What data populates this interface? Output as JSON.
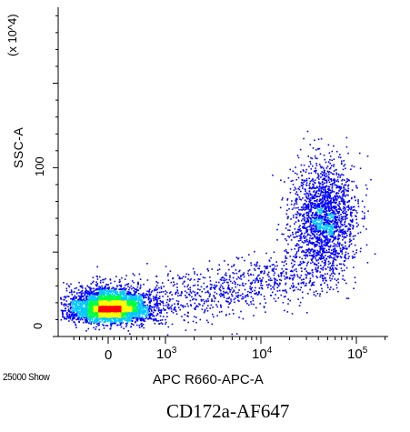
{
  "caption": "CD172a-AF647",
  "chart_data": {
    "type": "scatter",
    "title": "",
    "xlabel": "APC R660-APC-A",
    "ylabel": "SSC-A",
    "y_scale_note": "(x 10^4)",
    "events_note": "25000 Show",
    "x_scale": "biexponential",
    "x_ticks": [
      {
        "value": 0,
        "label": "0"
      },
      {
        "value": 1000,
        "label": "10^3"
      },
      {
        "value": 10000,
        "label": "10^4"
      },
      {
        "value": 100000,
        "label": "10^5"
      }
    ],
    "y_ticks": [
      {
        "value": 0,
        "label": "0"
      },
      {
        "value": 100,
        "label": "100"
      }
    ],
    "ylim": [
      0,
      195
    ],
    "grid": false,
    "colormap": "density (blue-cyan-green-yellow-red)",
    "populations": [
      {
        "name": "",
        "x_center": 0,
        "y_center": 13,
        "share": 0.55
      },
      {
        "name": "",
        "x_center": 45000,
        "y_center": 70,
        "share": 0.3
      },
      {
        "name": "",
        "x_center": 3000,
        "y_center": 22,
        "share": 0.15
      }
    ]
  },
  "colors": {
    "low": "#0000ff",
    "mid": "#00c8ff",
    "high_mid": "#00ff40",
    "high": "#ffff00",
    "peak": "#ff0000"
  }
}
